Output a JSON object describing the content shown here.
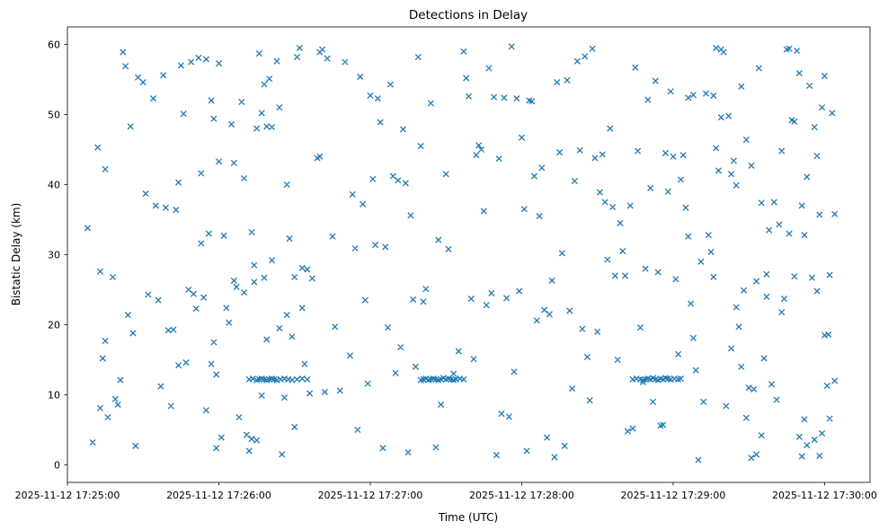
{
  "figure": {
    "background_color": "#ffffff",
    "spine_color": "#000000"
  },
  "chart_data": {
    "type": "scatter",
    "title": "Detections in Delay",
    "xlabel": "Time (UTC)",
    "ylabel": "Bistatic Delay (km)",
    "marker": "x",
    "marker_color": "#1f77b4",
    "legend": "none",
    "grid": "off",
    "xlim_seconds": [
      0,
      318
    ],
    "ylim": [
      -2.5,
      62.5
    ],
    "x_ticks": [
      {
        "seconds": 0,
        "label": "2025-11-12 17:25:00"
      },
      {
        "seconds": 60,
        "label": "2025-11-12 17:26:00"
      },
      {
        "seconds": 120,
        "label": "2025-11-12 17:27:00"
      },
      {
        "seconds": 180,
        "label": "2025-11-12 17:28:00"
      },
      {
        "seconds": 240,
        "label": "2025-11-12 17:29:00"
      },
      {
        "seconds": 300,
        "label": "2025-11-12 17:30:00"
      }
    ],
    "y_ticks": [
      0,
      10,
      20,
      30,
      40,
      50,
      60
    ],
    "points_format": "[seconds after 2025-11-12 17:25:00 UTC, bistatic delay km]",
    "points": [
      [
        8,
        33.8
      ],
      [
        10,
        3.2
      ],
      [
        12,
        45.3
      ],
      [
        13,
        27.6
      ],
      [
        13,
        8.1
      ],
      [
        14,
        15.2
      ],
      [
        15,
        42.2
      ],
      [
        15,
        17.7
      ],
      [
        16,
        6.8
      ],
      [
        18,
        26.8
      ],
      [
        19,
        9.4
      ],
      [
        20,
        8.6
      ],
      [
        21,
        12.1
      ],
      [
        22,
        58.9
      ],
      [
        23,
        56.9
      ],
      [
        24,
        21.4
      ],
      [
        25,
        48.3
      ],
      [
        26,
        18.8
      ],
      [
        27,
        2.7
      ],
      [
        28,
        55.3
      ],
      [
        30,
        54.6
      ],
      [
        31,
        38.7
      ],
      [
        32,
        24.3
      ],
      [
        34,
        52.3
      ],
      [
        35,
        37.0
      ],
      [
        36,
        23.5
      ],
      [
        37,
        11.2
      ],
      [
        38,
        55.6
      ],
      [
        39,
        36.7
      ],
      [
        40,
        19.2
      ],
      [
        41,
        8.4
      ],
      [
        42,
        19.3
      ],
      [
        43,
        36.4
      ],
      [
        44,
        40.3
      ],
      [
        44,
        14.2
      ],
      [
        45,
        57.0
      ],
      [
        46,
        50.1
      ],
      [
        47,
        14.6
      ],
      [
        48,
        25.0
      ],
      [
        49,
        57.5
      ],
      [
        50,
        24.4
      ],
      [
        51,
        22.3
      ],
      [
        52,
        58.1
      ],
      [
        53,
        31.6
      ],
      [
        53,
        41.6
      ],
      [
        54,
        23.9
      ],
      [
        55,
        7.8
      ],
      [
        55,
        57.9
      ],
      [
        56,
        33.0
      ],
      [
        57,
        14.4
      ],
      [
        57,
        52.0
      ],
      [
        58,
        17.5
      ],
      [
        58,
        49.4
      ],
      [
        59,
        12.9
      ],
      [
        59,
        2.4
      ],
      [
        60,
        57.3
      ],
      [
        60,
        43.3
      ],
      [
        61,
        3.9
      ],
      [
        62,
        32.7
      ],
      [
        63,
        22.4
      ],
      [
        64,
        20.3
      ],
      [
        65,
        48.6
      ],
      [
        66,
        43.1
      ],
      [
        66,
        26.3
      ],
      [
        67,
        25.4
      ],
      [
        68,
        6.8
      ],
      [
        69,
        51.8
      ],
      [
        70,
        40.9
      ],
      [
        70,
        24.6
      ],
      [
        71,
        4.3
      ],
      [
        72,
        2.0
      ],
      [
        73,
        33.2
      ],
      [
        73,
        3.7
      ],
      [
        74,
        28.5
      ],
      [
        74,
        26.1
      ],
      [
        75,
        3.5
      ],
      [
        75,
        48.0
      ],
      [
        76,
        58.7
      ],
      [
        77,
        50.2
      ],
      [
        77,
        9.9
      ],
      [
        78,
        54.3
      ],
      [
        78,
        26.7
      ],
      [
        79,
        17.9
      ],
      [
        79,
        48.3
      ],
      [
        80,
        55.1
      ],
      [
        81,
        29.2
      ],
      [
        81,
        48.2
      ],
      [
        83,
        57.6
      ],
      [
        84,
        51.0
      ],
      [
        84,
        19.5
      ],
      [
        85,
        1.5
      ],
      [
        86,
        9.6
      ],
      [
        87,
        40.0
      ],
      [
        87,
        21.4
      ],
      [
        88,
        32.3
      ],
      [
        89,
        18.3
      ],
      [
        90,
        26.8
      ],
      [
        90,
        5.4
      ],
      [
        91,
        58.2
      ],
      [
        92,
        59.5
      ],
      [
        93,
        22.4
      ],
      [
        93,
        28.1
      ],
      [
        94,
        14.4
      ],
      [
        95,
        27.9
      ],
      [
        96,
        10.2
      ],
      [
        97,
        26.6
      ],
      [
        99,
        43.8
      ],
      [
        100,
        44.0
      ],
      [
        100,
        58.9
      ],
      [
        101,
        59.3
      ],
      [
        72,
        12.2
      ],
      [
        73.5,
        12.3
      ],
      [
        75,
        12.1
      ],
      [
        76,
        12.2
      ],
      [
        77,
        12.3
      ],
      [
        78,
        12.2
      ],
      [
        79,
        12.1
      ],
      [
        80,
        12.2
      ],
      [
        81,
        12.3
      ],
      [
        82,
        12.2
      ],
      [
        83,
        12.1
      ],
      [
        84.5,
        12.2
      ],
      [
        86,
        12.3
      ],
      [
        87.5,
        12.2
      ],
      [
        89,
        12.1
      ],
      [
        91,
        12.2
      ],
      [
        93,
        12.3
      ],
      [
        95,
        12.2
      ],
      [
        102,
        10.4
      ],
      [
        103,
        58.0
      ],
      [
        105,
        32.6
      ],
      [
        106,
        19.7
      ],
      [
        108,
        10.6
      ],
      [
        110,
        57.5
      ],
      [
        112,
        15.6
      ],
      [
        113,
        38.6
      ],
      [
        114,
        30.9
      ],
      [
        115,
        5.0
      ],
      [
        116,
        55.4
      ],
      [
        117,
        37.2
      ],
      [
        118,
        23.5
      ],
      [
        119,
        11.6
      ],
      [
        120,
        52.7
      ],
      [
        121,
        40.8
      ],
      [
        122,
        31.4
      ],
      [
        123,
        52.3
      ],
      [
        124,
        48.9
      ],
      [
        125,
        2.4
      ],
      [
        126,
        31.1
      ],
      [
        127,
        19.6
      ],
      [
        128,
        54.3
      ],
      [
        129,
        41.2
      ],
      [
        130,
        13.1
      ],
      [
        131,
        40.6
      ],
      [
        132,
        16.8
      ],
      [
        133,
        47.9
      ],
      [
        134,
        40.2
      ],
      [
        135,
        1.8
      ],
      [
        136,
        35.6
      ],
      [
        137,
        23.6
      ],
      [
        138,
        14.0
      ],
      [
        139,
        58.2
      ],
      [
        140,
        45.5
      ],
      [
        141,
        23.3
      ],
      [
        142,
        25.1
      ],
      [
        144,
        51.6
      ],
      [
        146,
        2.5
      ],
      [
        147,
        32.1
      ],
      [
        148,
        8.6
      ],
      [
        150,
        41.5
      ],
      [
        151,
        30.8
      ],
      [
        153,
        13.0
      ],
      [
        155,
        16.2
      ],
      [
        157,
        59.0
      ],
      [
        158,
        55.2
      ],
      [
        159,
        52.6
      ],
      [
        160,
        23.7
      ],
      [
        140,
        12.1
      ],
      [
        141,
        12.2
      ],
      [
        142,
        12.3
      ],
      [
        143,
        12.1
      ],
      [
        144,
        12.2
      ],
      [
        145,
        12.3
      ],
      [
        146,
        12.2
      ],
      [
        147,
        12.1
      ],
      [
        148,
        12.2
      ],
      [
        149,
        12.4
      ],
      [
        150,
        12.2
      ],
      [
        151,
        12.3
      ],
      [
        152,
        12.2
      ],
      [
        153,
        12.1
      ],
      [
        154,
        12.2
      ],
      [
        155.5,
        12.3
      ],
      [
        157,
        12.2
      ],
      [
        161,
        15.1
      ],
      [
        162,
        44.2
      ],
      [
        163,
        45.6
      ],
      [
        164,
        45.0
      ],
      [
        165,
        36.2
      ],
      [
        166,
        22.8
      ],
      [
        167,
        56.6
      ],
      [
        168,
        24.5
      ],
      [
        169,
        52.5
      ],
      [
        170,
        1.4
      ],
      [
        171,
        43.7
      ],
      [
        172,
        7.3
      ],
      [
        173,
        52.4
      ],
      [
        174,
        23.8
      ],
      [
        175,
        6.9
      ],
      [
        176,
        59.7
      ],
      [
        177,
        13.3
      ],
      [
        178,
        52.3
      ],
      [
        179,
        24.8
      ],
      [
        180,
        46.7
      ],
      [
        181,
        36.5
      ],
      [
        182,
        2.0
      ],
      [
        183,
        52.0
      ],
      [
        184,
        51.9
      ],
      [
        185,
        41.2
      ],
      [
        186,
        20.6
      ],
      [
        187,
        35.5
      ],
      [
        188,
        42.4
      ],
      [
        189,
        22.1
      ],
      [
        190,
        3.9
      ],
      [
        191,
        21.5
      ],
      [
        192,
        26.3
      ],
      [
        193,
        1.1
      ],
      [
        194,
        54.6
      ],
      [
        195,
        44.6
      ],
      [
        196,
        30.2
      ],
      [
        197,
        2.7
      ],
      [
        198,
        54.9
      ],
      [
        199,
        22.0
      ],
      [
        200,
        10.9
      ],
      [
        201,
        40.5
      ],
      [
        202,
        57.6
      ],
      [
        203,
        44.9
      ],
      [
        204,
        19.4
      ],
      [
        205,
        58.3
      ],
      [
        206,
        15.4
      ],
      [
        207,
        9.2
      ],
      [
        208,
        59.4
      ],
      [
        209,
        43.8
      ],
      [
        210,
        19.0
      ],
      [
        211,
        38.9
      ],
      [
        212,
        44.3
      ],
      [
        213,
        37.5
      ],
      [
        214,
        29.3
      ],
      [
        215,
        48.0
      ],
      [
        216,
        36.8
      ],
      [
        217,
        27.0
      ],
      [
        218,
        15.0
      ],
      [
        219,
        34.5
      ],
      [
        220,
        30.5
      ],
      [
        221,
        27.0
      ],
      [
        222,
        4.8
      ],
      [
        223,
        37.0
      ],
      [
        224,
        5.2
      ],
      [
        225,
        56.7
      ],
      [
        226,
        44.8
      ],
      [
        227,
        19.6
      ],
      [
        228,
        11.8
      ],
      [
        229,
        28.0
      ],
      [
        230,
        52.1
      ],
      [
        231,
        39.5
      ],
      [
        232,
        9.0
      ],
      [
        233,
        54.8
      ],
      [
        234,
        27.5
      ],
      [
        235,
        5.6
      ],
      [
        236,
        5.7
      ],
      [
        237,
        44.5
      ],
      [
        238,
        39.0
      ],
      [
        239,
        53.3
      ],
      [
        240,
        44.0
      ],
      [
        241,
        26.5
      ],
      [
        242,
        15.8
      ],
      [
        224,
        12.2
      ],
      [
        225.5,
        12.3
      ],
      [
        227,
        12.2
      ],
      [
        228,
        12.1
      ],
      [
        229,
        12.2
      ],
      [
        230,
        12.3
      ],
      [
        231,
        12.2
      ],
      [
        232,
        12.4
      ],
      [
        233,
        12.2
      ],
      [
        234,
        12.1
      ],
      [
        235,
        12.3
      ],
      [
        236,
        12.2
      ],
      [
        237,
        12.4
      ],
      [
        238,
        12.3
      ],
      [
        239,
        12.2
      ],
      [
        240.5,
        12.3
      ],
      [
        242,
        12.2
      ],
      [
        243,
        12.3
      ],
      [
        243,
        40.7
      ],
      [
        244,
        44.2
      ],
      [
        245,
        36.7
      ],
      [
        246,
        52.4
      ],
      [
        247,
        23.0
      ],
      [
        248,
        18.1
      ],
      [
        249,
        13.5
      ],
      [
        250,
        0.7
      ],
      [
        251,
        29.0
      ],
      [
        252,
        9.0
      ],
      [
        253,
        53.0
      ],
      [
        254,
        32.8
      ],
      [
        255,
        30.4
      ],
      [
        256,
        52.7
      ],
      [
        257,
        45.2
      ],
      [
        257,
        59.5
      ],
      [
        258,
        42.0
      ],
      [
        259,
        49.6
      ],
      [
        259,
        59.3
      ],
      [
        260,
        58.9
      ],
      [
        261,
        8.4
      ],
      [
        262,
        49.8
      ],
      [
        263,
        16.6
      ],
      [
        264,
        43.4
      ],
      [
        265,
        39.9
      ],
      [
        266,
        19.7
      ],
      [
        267,
        54.0
      ],
      [
        268,
        24.9
      ],
      [
        269,
        46.4
      ],
      [
        270,
        11.0
      ],
      [
        271,
        42.7
      ],
      [
        272,
        10.8
      ],
      [
        273,
        26.2
      ],
      [
        274,
        56.6
      ],
      [
        275,
        37.4
      ],
      [
        276,
        15.2
      ],
      [
        277,
        24.0
      ],
      [
        278,
        33.5
      ],
      [
        279,
        11.5
      ],
      [
        280,
        37.5
      ],
      [
        281,
        9.3
      ],
      [
        282,
        34.3
      ],
      [
        283,
        44.8
      ],
      [
        283,
        21.8
      ],
      [
        284,
        23.7
      ],
      [
        285,
        59.3
      ],
      [
        286,
        59.4
      ],
      [
        286,
        33.0
      ],
      [
        287,
        49.2
      ],
      [
        288,
        49.0
      ],
      [
        288,
        26.9
      ],
      [
        289,
        59.1
      ],
      [
        290,
        55.9
      ],
      [
        290,
        4.0
      ],
      [
        291,
        37.0
      ],
      [
        291,
        1.2
      ],
      [
        292,
        32.8
      ],
      [
        292,
        6.5
      ],
      [
        293,
        41.1
      ],
      [
        293,
        2.8
      ],
      [
        294,
        54.1
      ],
      [
        295,
        26.7
      ],
      [
        296,
        3.6
      ],
      [
        296,
        48.2
      ],
      [
        297,
        44.1
      ],
      [
        297,
        24.8
      ],
      [
        298,
        35.7
      ],
      [
        299,
        51.0
      ],
      [
        300,
        55.5
      ],
      [
        300,
        18.5
      ],
      [
        301.5,
        18.6
      ],
      [
        302,
        27.1
      ],
      [
        263,
        41.5
      ],
      [
        265,
        22.5
      ],
      [
        267,
        14.0
      ],
      [
        269,
        6.7
      ],
      [
        271,
        1.0
      ],
      [
        273,
        1.5
      ],
      [
        275,
        4.2
      ],
      [
        277,
        27.2
      ],
      [
        303,
        50.2
      ],
      [
        304,
        35.8
      ],
      [
        302,
        6.6
      ],
      [
        304,
        12.0
      ],
      [
        298,
        1.3
      ],
      [
        299,
        4.5
      ],
      [
        301,
        11.3
      ],
      [
        256,
        26.8
      ],
      [
        246,
        32.6
      ],
      [
        248,
        52.8
      ]
    ]
  }
}
